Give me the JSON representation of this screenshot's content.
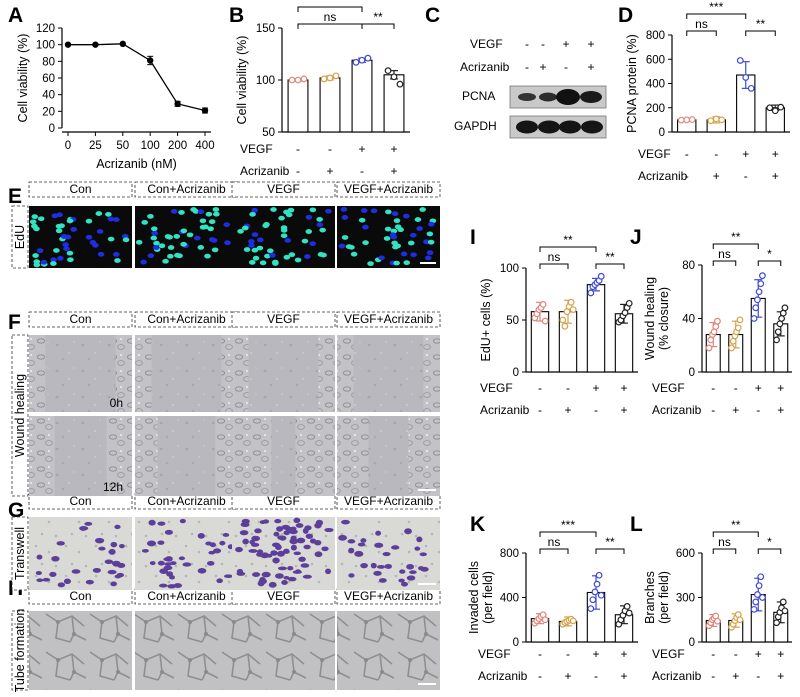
{
  "colors": {
    "con": "#e0857a",
    "acr": "#d7a149",
    "vegf": "#3f49d4",
    "combo": "#222222",
    "edu_bg": "#0a0a0a",
    "edu_nuc": "#1f2ee0",
    "edu_pos": "#31e3c2",
    "micro_bg": "#b9b9bf",
    "tw_bg": "#dadad8",
    "tw_cell": "#5b3f9a"
  },
  "row_labels": [
    "VEGF",
    "Acrizanib"
  ],
  "design": [
    [
      "-",
      "-",
      "+",
      "+"
    ],
    [
      "-",
      "+",
      "-",
      "+"
    ]
  ],
  "panel_letters": {
    "A": "A",
    "B": "B",
    "C": "C",
    "D": "D",
    "E": "E",
    "F": "F",
    "G": "G",
    "H": "H",
    "I": "I",
    "J": "J",
    "K": "K",
    "L": "L"
  },
  "image_headers": [
    "Con",
    "Con+Acrizanib",
    "VEGF",
    "VEGF+Acrizanib"
  ],
  "image_rows": {
    "E": "EdU",
    "F": "Wound healing",
    "G": "Transwell",
    "H": "Tube formation"
  },
  "time_labels": [
    "0h",
    "12h"
  ],
  "blot": {
    "labels": [
      "PCNA",
      "GAPDH"
    ]
  },
  "chart_data": [
    {
      "panel": "A",
      "type": "line",
      "x": [
        0,
        25,
        50,
        100,
        200,
        400
      ],
      "xticks": [
        "0",
        "25",
        "50",
        "100",
        "200",
        "400"
      ],
      "values": [
        100,
        100,
        101,
        81,
        29,
        21
      ],
      "errors": [
        0,
        0,
        0,
        5,
        3,
        3
      ],
      "xlabel": "Acrizanib (nM)",
      "ylabel": "Cell viability (%)",
      "ylim": [
        0,
        120
      ],
      "yticks": [
        0,
        20,
        40,
        60,
        80,
        100,
        120
      ]
    },
    {
      "panel": "B",
      "type": "bar",
      "categories": [
        "Con",
        "Con+Acrizanib",
        "VEGF",
        "VEGF+Acrizanib"
      ],
      "values": [
        100,
        102,
        119,
        105
      ],
      "errors": [
        1,
        2,
        2,
        4
      ],
      "points": [
        [
          100,
          100,
          101
        ],
        [
          101,
          102,
          104
        ],
        [
          117,
          119,
          121
        ],
        [
          109,
          103,
          96
        ]
      ],
      "ylabel": "Cell viability (%)",
      "ylim": [
        50,
        150
      ],
      "yticks": [
        50,
        100,
        150
      ],
      "sig": [
        {
          "a": 0,
          "b": 2,
          "t": "ns",
          "lvl": 0
        },
        {
          "a": 0,
          "b": 2,
          "t": "**",
          "lvl": 1
        },
        {
          "a": 2,
          "b": 3,
          "t": "**",
          "lvl": 0
        }
      ]
    },
    {
      "panel": "D",
      "type": "bar",
      "categories": [
        "Con",
        "Con+Acrizanib",
        "VEGF",
        "VEGF+Acrizanib"
      ],
      "values": [
        100,
        100,
        470,
        200
      ],
      "errors": [
        10,
        25,
        110,
        22
      ],
      "points": [
        [
          98,
          100,
          103
        ],
        [
          93,
          108,
          100
        ],
        [
          590,
          450,
          360
        ],
        [
          200,
          175,
          205
        ]
      ],
      "ylabel": "PCNA protein (%)",
      "ylim": [
        0,
        800
      ],
      "yticks": [
        0,
        200,
        400,
        600,
        800
      ],
      "sig": [
        {
          "a": 0,
          "b": 1,
          "t": "ns",
          "lvl": 0
        },
        {
          "a": 0,
          "b": 2,
          "t": "***",
          "lvl": 1
        },
        {
          "a": 2,
          "b": 3,
          "t": "**",
          "lvl": 0
        }
      ]
    },
    {
      "panel": "I",
      "type": "bar",
      "categories": [
        "Con",
        "Con+Acrizanib",
        "VEGF",
        "VEGF+Acrizanib"
      ],
      "values": [
        58,
        58,
        84,
        56
      ],
      "errors": [
        9,
        11,
        6,
        9
      ],
      "points": [
        [
          52,
          56,
          60,
          62,
          65,
          49
        ],
        [
          50,
          44,
          58,
          63,
          67,
          60
        ],
        [
          76,
          82,
          84,
          86,
          88,
          92
        ],
        [
          48,
          50,
          54,
          57,
          62,
          66
        ]
      ],
      "ylabel": "EdU+ cells (%)",
      "ylim": [
        0,
        100
      ],
      "yticks": [
        0,
        50,
        100
      ],
      "sig": [
        {
          "a": 0,
          "b": 1,
          "t": "ns",
          "lvl": 0
        },
        {
          "a": 0,
          "b": 2,
          "t": "**",
          "lvl": 1
        },
        {
          "a": 2,
          "b": 3,
          "t": "**",
          "lvl": 0
        }
      ]
    },
    {
      "panel": "J",
      "type": "bar",
      "categories": [
        "Con",
        "Con+Acrizanib",
        "VEGF",
        "VEGF+Acrizanib"
      ],
      "values": [
        28,
        28,
        55,
        36
      ],
      "errors": [
        9,
        10,
        14,
        9
      ],
      "points": [
        [
          18,
          24,
          28,
          30,
          34,
          38
        ],
        [
          18,
          23,
          27,
          30,
          33,
          39
        ],
        [
          40,
          48,
          54,
          60,
          66,
          72
        ],
        [
          24,
          30,
          36,
          40,
          44,
          48
        ]
      ],
      "ylabel": "Wound healing (% closure)",
      "ylim": [
        0,
        80
      ],
      "yticks": [
        0,
        40,
        80
      ],
      "sig": [
        {
          "a": 0,
          "b": 1,
          "t": "ns",
          "lvl": 0
        },
        {
          "a": 0,
          "b": 2,
          "t": "**",
          "lvl": 1
        },
        {
          "a": 2,
          "b": 3,
          "t": "*",
          "lvl": 0
        }
      ]
    },
    {
      "panel": "K",
      "type": "bar",
      "categories": [
        "Con",
        "Con+Acrizanib",
        "VEGF",
        "VEGF+Acrizanib"
      ],
      "values": [
        210,
        185,
        445,
        245
      ],
      "errors": [
        45,
        40,
        150,
        80
      ],
      "points": [
        [
          170,
          190,
          210,
          230,
          245,
          200
        ],
        [
          160,
          175,
          185,
          195,
          205,
          190
        ],
        [
          300,
          380,
          450,
          520,
          600,
          420
        ],
        [
          160,
          200,
          240,
          280,
          320,
          260
        ]
      ],
      "ylabel": "Invaded cells (per field)",
      "ylim": [
        0,
        800
      ],
      "yticks": [
        0,
        400,
        800
      ],
      "sig": [
        {
          "a": 0,
          "b": 1,
          "t": "ns",
          "lvl": 0
        },
        {
          "a": 0,
          "b": 2,
          "t": "***",
          "lvl": 1
        },
        {
          "a": 2,
          "b": 3,
          "t": "**",
          "lvl": 0
        }
      ]
    },
    {
      "panel": "L",
      "type": "bar",
      "categories": [
        "Con",
        "Con+Acrizanib",
        "VEGF",
        "VEGF+Acrizanib"
      ],
      "values": [
        145,
        145,
        320,
        200
      ],
      "errors": [
        40,
        45,
        110,
        70
      ],
      "points": [
        [
          110,
          130,
          150,
          160,
          175,
          140
        ],
        [
          100,
          120,
          145,
          165,
          185,
          150
        ],
        [
          220,
          270,
          320,
          380,
          440,
          300
        ],
        [
          130,
          170,
          200,
          230,
          270,
          210
        ]
      ],
      "ylabel": "Branches (per field)",
      "ylim": [
        0,
        600
      ],
      "yticks": [
        0,
        300,
        600
      ],
      "sig": [
        {
          "a": 0,
          "b": 1,
          "t": "ns",
          "lvl": 0
        },
        {
          "a": 0,
          "b": 2,
          "t": "**",
          "lvl": 1
        },
        {
          "a": 2,
          "b": 3,
          "t": "*",
          "lvl": 0
        }
      ]
    }
  ]
}
